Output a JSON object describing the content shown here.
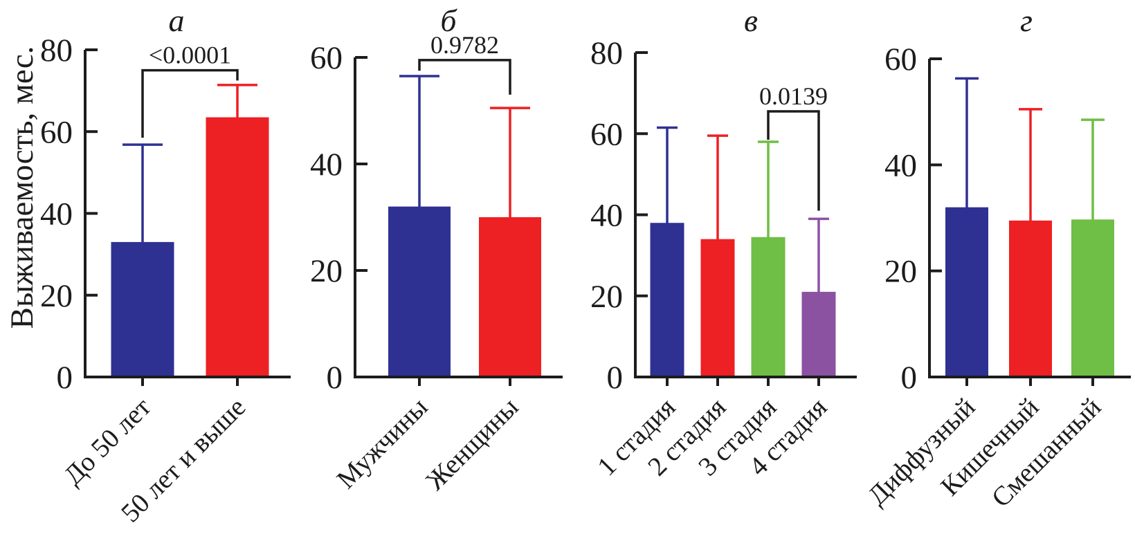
{
  "figure": {
    "y_axis_label": "Выживаемость, мес.",
    "colors": {
      "blue": "#2E3192",
      "red": "#ED2024",
      "green": "#6FBE45",
      "purple": "#8C52A2",
      "axis": "#1c1c1c"
    }
  },
  "chart_data": [
    {
      "type": "bar",
      "title": "а",
      "ylabel": "Выживаемость, мес.",
      "ylim": [
        0,
        80
      ],
      "yticks": [
        0,
        20,
        40,
        60,
        80
      ],
      "grid": false,
      "legend": "none",
      "categories": [
        "До 50 лет",
        "50 лет и выше"
      ],
      "values": [
        33,
        63.5
      ],
      "error_tops": [
        56.8,
        71.4
      ],
      "bar_colors": [
        "blue",
        "red"
      ],
      "significance": {
        "label": "<0.0001",
        "from": 0,
        "to": 1,
        "top": 75,
        "left_end": 58.5,
        "right_end": 72.5
      }
    },
    {
      "type": "bar",
      "title": "б",
      "ylabel": "Выживаемость, мес.",
      "ylim": [
        0,
        60
      ],
      "yticks": [
        0,
        20,
        40,
        60
      ],
      "grid": false,
      "legend": "none",
      "categories": [
        "Мужчины",
        "Женщины"
      ],
      "values": [
        32,
        30
      ],
      "error_tops": [
        56.5,
        50.5
      ],
      "bar_colors": [
        "blue",
        "red"
      ],
      "significance": {
        "label": "0.9782",
        "from": 0,
        "to": 1,
        "top": 59.5,
        "left_end": 57.5,
        "right_end": 53
      }
    },
    {
      "type": "bar",
      "title": "в",
      "ylabel": "Выживаемость, мес.",
      "ylim": [
        0,
        80
      ],
      "yticks": [
        0,
        20,
        40,
        60,
        80
      ],
      "grid": false,
      "legend": "none",
      "categories": [
        "1 стадия",
        "2 стадия",
        "3 стадия",
        "4 стадия"
      ],
      "values": [
        38,
        34,
        34.5,
        21
      ],
      "error_tops": [
        61.5,
        59.5,
        58,
        39
      ],
      "bar_colors": [
        "blue",
        "red",
        "green",
        "purple"
      ],
      "significance": {
        "label": "0.0139",
        "from": 2,
        "to": 3,
        "top": 65.5,
        "left_end": 58.5,
        "right_end": 41
      }
    },
    {
      "type": "bar",
      "title": "г",
      "ylabel": "Выживаемость, мес.",
      "ylim": [
        0,
        60
      ],
      "yticks": [
        0,
        20,
        40,
        60
      ],
      "grid": false,
      "legend": "none",
      "categories": [
        "Диффузный",
        "Кишечный",
        "Смешанный"
      ],
      "values": [
        32,
        29.5,
        29.7
      ],
      "error_tops": [
        56.3,
        50.5,
        48.5
      ],
      "bar_colors": [
        "blue",
        "red",
        "green"
      ],
      "significance": null
    }
  ]
}
